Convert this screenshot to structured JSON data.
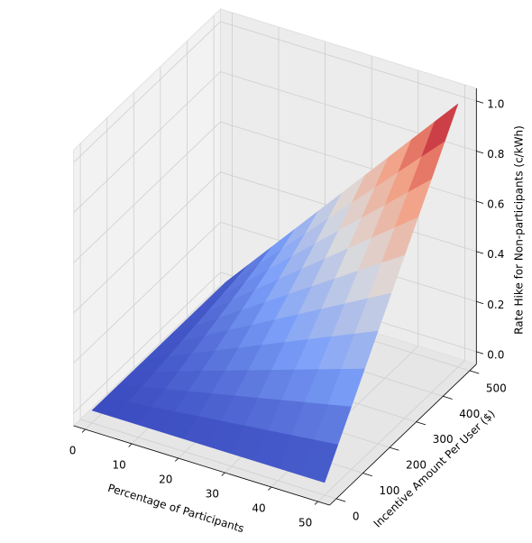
{
  "chart_data": {
    "type": "surface",
    "xlabel": "Percentage of Participants",
    "ylabel": "Incentive Amount Per User ($)",
    "zlabel": "Rate Hike for Non-participants (c/kWh)",
    "x": [
      0,
      5,
      10,
      15,
      20,
      25,
      30,
      35,
      40,
      45,
      50
    ],
    "y": [
      0,
      50,
      100,
      150,
      200,
      250,
      300,
      350,
      400,
      450,
      500
    ],
    "z": [
      [
        0,
        0,
        0,
        0,
        0,
        0,
        0,
        0,
        0,
        0,
        0
      ],
      [
        0,
        0.01,
        0.02,
        0.03,
        0.04,
        0.05,
        0.06,
        0.07,
        0.08,
        0.09,
        0.1
      ],
      [
        0,
        0.02,
        0.04,
        0.06,
        0.08,
        0.1,
        0.12,
        0.14,
        0.16,
        0.18,
        0.2
      ],
      [
        0,
        0.03,
        0.06,
        0.09,
        0.12,
        0.15,
        0.18,
        0.21,
        0.24,
        0.27,
        0.3
      ],
      [
        0,
        0.04,
        0.08,
        0.12,
        0.16,
        0.2,
        0.24,
        0.28,
        0.32,
        0.36,
        0.4
      ],
      [
        0,
        0.05,
        0.1,
        0.15,
        0.2,
        0.25,
        0.3,
        0.35,
        0.4,
        0.45,
        0.5
      ],
      [
        0,
        0.06,
        0.12,
        0.18,
        0.24,
        0.3,
        0.36,
        0.42,
        0.48,
        0.54,
        0.6
      ],
      [
        0,
        0.07,
        0.14,
        0.21,
        0.28,
        0.35,
        0.42,
        0.49,
        0.56,
        0.63,
        0.7
      ],
      [
        0,
        0.08,
        0.16,
        0.24,
        0.32,
        0.4,
        0.48,
        0.56,
        0.64,
        0.72,
        0.8
      ],
      [
        0,
        0.09,
        0.18,
        0.27,
        0.36,
        0.45,
        0.54,
        0.63,
        0.72,
        0.81,
        0.9
      ],
      [
        0,
        0.1,
        0.2,
        0.3,
        0.4,
        0.5,
        0.6,
        0.7,
        0.8,
        0.9,
        1
      ]
    ],
    "colormap": "coolwarm",
    "xlim": [
      -2.5,
      52.5
    ],
    "ylim": [
      -25,
      525
    ],
    "zlim": [
      -0.05,
      1.05
    ],
    "xticks": [
      0,
      10,
      20,
      30,
      40,
      50
    ],
    "yticks": [
      0,
      100,
      200,
      300,
      400,
      500
    ],
    "zticks": [
      {
        "value": 0,
        "label": "0.0"
      },
      {
        "value": 0.2,
        "label": "0.2"
      },
      {
        "value": 0.4,
        "label": "0.4"
      },
      {
        "value": 0.6,
        "label": "0.6"
      },
      {
        "value": 0.8,
        "label": "0.8"
      },
      {
        "value": 1,
        "label": "1.0"
      }
    ],
    "grid": true
  }
}
